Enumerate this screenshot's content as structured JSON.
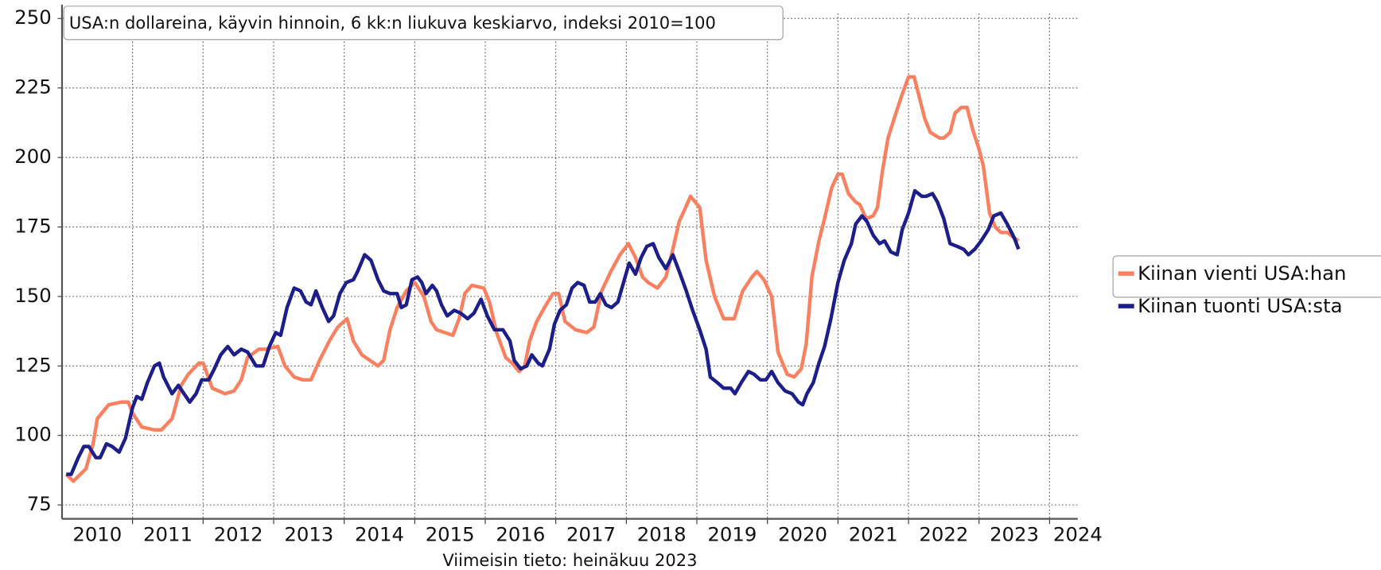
{
  "chart_data": {
    "type": "line",
    "annotation": "USA:n dollareina, käyvin hinnoin, 6 kk:n liukuva keskiarvo, indeksi 2010=100",
    "xlabel": "Viimeisin tieto: heinäkuu 2023",
    "xlim": [
      2010,
      2024.4
    ],
    "ylim": [
      70,
      255
    ],
    "yticks": [
      75,
      100,
      125,
      150,
      175,
      200,
      225,
      250
    ],
    "xticks": [
      {
        "value": 2010.5,
        "label": "2010"
      },
      {
        "value": 2011.5,
        "label": "2011"
      },
      {
        "value": 2012.5,
        "label": "2012"
      },
      {
        "value": 2013.5,
        "label": "2013"
      },
      {
        "value": 2014.5,
        "label": "2014"
      },
      {
        "value": 2015.5,
        "label": "2015"
      },
      {
        "value": 2016.5,
        "label": "2016"
      },
      {
        "value": 2017.5,
        "label": "2017"
      },
      {
        "value": 2018.5,
        "label": "2018"
      },
      {
        "value": 2019.5,
        "label": "2019"
      },
      {
        "value": 2020.5,
        "label": "2020"
      },
      {
        "value": 2021.5,
        "label": "2021"
      },
      {
        "value": 2022.5,
        "label": "2022"
      },
      {
        "value": 2023.5,
        "label": "2023"
      },
      {
        "value": 2024.4,
        "label": "2024"
      }
    ],
    "xgrid": [
      2011,
      2012,
      2013,
      2014,
      2015,
      2016,
      2017,
      2018,
      2019,
      2020,
      2021,
      2022,
      2023,
      2024
    ],
    "grid": true,
    "legend": "right",
    "series": [
      {
        "name": "Kiinan vienti USA:han",
        "color": "#fa8060",
        "x": [
          2010.06,
          2010.16,
          2010.34,
          2010.44,
          2010.5,
          2010.66,
          2010.84,
          2010.94,
          2011.0,
          2011.13,
          2011.31,
          2011.41,
          2011.56,
          2011.69,
          2011.79,
          2011.94,
          2012.0,
          2012.13,
          2012.31,
          2012.44,
          2012.54,
          2012.63,
          2012.79,
          2012.88,
          2013.06,
          2013.16,
          2013.29,
          2013.41,
          2013.53,
          2013.65,
          2013.79,
          2013.91,
          2014.04,
          2014.13,
          2014.25,
          2014.48,
          2014.56,
          2014.65,
          2014.75,
          2014.88,
          2015.0,
          2015.13,
          2015.23,
          2015.31,
          2015.54,
          2015.63,
          2015.71,
          2015.81,
          2015.98,
          2016.06,
          2016.16,
          2016.29,
          2016.38,
          2016.48,
          2016.56,
          2016.63,
          2016.73,
          2016.84,
          2016.96,
          2017.04,
          2017.13,
          2017.28,
          2017.44,
          2017.54,
          2017.65,
          2017.78,
          2017.91,
          2018.03,
          2018.13,
          2018.23,
          2018.31,
          2018.44,
          2018.56,
          2018.65,
          2018.75,
          2018.84,
          2018.91,
          2019.04,
          2019.13,
          2019.25,
          2019.38,
          2019.53,
          2019.65,
          2019.78,
          2019.85,
          2019.95,
          2020.06,
          2020.15,
          2020.28,
          2020.38,
          2020.48,
          2020.55,
          2020.63,
          2020.73,
          2020.81,
          2020.91,
          2021.0,
          2021.06,
          2021.15,
          2021.25,
          2021.31,
          2021.4,
          2021.5,
          2021.56,
          2021.63,
          2021.71,
          2021.81,
          2021.9,
          2022.0,
          2022.08,
          2022.15,
          2022.23,
          2022.31,
          2022.44,
          2022.5,
          2022.59,
          2022.66,
          2022.75,
          2022.83,
          2022.91,
          2023.0,
          2023.06,
          2023.15,
          2023.23,
          2023.31,
          2023.4,
          2023.5,
          2023.56
        ],
        "values": [
          86,
          83.5,
          88,
          97,
          106,
          111,
          112,
          112,
          108,
          103,
          102,
          102,
          106,
          118,
          122,
          126,
          126,
          117,
          115,
          116,
          120,
          128,
          131,
          131,
          132,
          125,
          121,
          120,
          120,
          127,
          134,
          139,
          142,
          134,
          129,
          125,
          127,
          138,
          146,
          152,
          155,
          150,
          141,
          138,
          136,
          142,
          151,
          154,
          153,
          148,
          137,
          128,
          126,
          123,
          125,
          134,
          141,
          146,
          151,
          151,
          141,
          138,
          137,
          139,
          152,
          159,
          165,
          169,
          164,
          157,
          155,
          153,
          157,
          166,
          177,
          182,
          186,
          182,
          163,
          150,
          142,
          142,
          152,
          157,
          159,
          156,
          150,
          130,
          122,
          121,
          124,
          133,
          157,
          170,
          178,
          189,
          194,
          194,
          187,
          184,
          183,
          178,
          179,
          182,
          195,
          207,
          215,
          222,
          229,
          229,
          222,
          214,
          209,
          207,
          207,
          209,
          216,
          218,
          218,
          210,
          203,
          197,
          180,
          175,
          173,
          173,
          171,
          170
        ]
      },
      {
        "name": "Kiinan tuonti USA:sta",
        "color": "#1c1f8a",
        "x": [
          2010.06,
          2010.13,
          2010.23,
          2010.31,
          2010.38,
          2010.48,
          2010.54,
          2010.63,
          2010.71,
          2010.81,
          2010.9,
          2011.0,
          2011.06,
          2011.13,
          2011.21,
          2011.31,
          2011.38,
          2011.44,
          2011.56,
          2011.65,
          2011.73,
          2011.81,
          2011.9,
          2011.98,
          2012.08,
          2012.16,
          2012.25,
          2012.35,
          2012.44,
          2012.54,
          2012.63,
          2012.75,
          2012.85,
          2012.94,
          2013.03,
          2013.1,
          2013.19,
          2013.29,
          2013.38,
          2013.46,
          2013.53,
          2013.6,
          2013.69,
          2013.78,
          2013.85,
          2013.94,
          2014.03,
          2014.13,
          2014.19,
          2014.29,
          2014.38,
          2014.48,
          2014.56,
          2014.65,
          2014.75,
          2014.81,
          2014.88,
          2014.96,
          2015.04,
          2015.1,
          2015.16,
          2015.25,
          2015.31,
          2015.38,
          2015.46,
          2015.56,
          2015.65,
          2015.75,
          2015.84,
          2015.94,
          2016.03,
          2016.13,
          2016.25,
          2016.35,
          2016.41,
          2016.5,
          2016.59,
          2016.66,
          2016.75,
          2016.81,
          2016.91,
          2016.98,
          2017.06,
          2017.15,
          2017.23,
          2017.31,
          2017.4,
          2017.48,
          2017.56,
          2017.63,
          2017.71,
          2017.79,
          2017.88,
          2017.96,
          2018.04,
          2018.13,
          2018.21,
          2018.29,
          2018.38,
          2018.46,
          2018.56,
          2018.66,
          2018.75,
          2018.85,
          2018.94,
          2019.04,
          2019.13,
          2019.19,
          2019.29,
          2019.38,
          2019.48,
          2019.54,
          2019.63,
          2019.73,
          2019.81,
          2019.9,
          2019.98,
          2020.06,
          2020.15,
          2020.25,
          2020.35,
          2020.44,
          2020.5,
          2020.56,
          2020.65,
          2020.73,
          2020.81,
          2020.9,
          2021.0,
          2021.09,
          2021.19,
          2021.25,
          2021.34,
          2021.41,
          2021.5,
          2021.59,
          2021.66,
          2021.75,
          2021.84,
          2021.91,
          2022.0,
          2022.09,
          2022.19,
          2022.25,
          2022.34,
          2022.41,
          2022.5,
          2022.59,
          2022.69,
          2022.78,
          2022.85,
          2022.94,
          2023.03,
          2023.13,
          2023.21,
          2023.31,
          2023.4,
          2023.5,
          2023.56
        ],
        "values": [
          86,
          86,
          92,
          96,
          96,
          92,
          92,
          97,
          96,
          94,
          99,
          110,
          114,
          113,
          119,
          125,
          126,
          121,
          115,
          118,
          115,
          112,
          115,
          120,
          120,
          124,
          129,
          132,
          129,
          131,
          130,
          125,
          125,
          132,
          137,
          136,
          146,
          153,
          152,
          148,
          147,
          152,
          146,
          141,
          143,
          151,
          155,
          156,
          159,
          165,
          163,
          156,
          152,
          151,
          151,
          146,
          147,
          156,
          157,
          155,
          151,
          154,
          152,
          147,
          143,
          145,
          144,
          142,
          144,
          149,
          143,
          138,
          138,
          134,
          127,
          124,
          125,
          129,
          126,
          125,
          131,
          140,
          145,
          147,
          153,
          155,
          154,
          148,
          148,
          151,
          147,
          146,
          148,
          155,
          162,
          158,
          164,
          168,
          169,
          164,
          160,
          165,
          159,
          152,
          145,
          138,
          131,
          121,
          119,
          117,
          117,
          115,
          119,
          123,
          122,
          120,
          120,
          123,
          119,
          116,
          115,
          112,
          111,
          115,
          119,
          126,
          132,
          142,
          155,
          163,
          169,
          176,
          179,
          177,
          172,
          169,
          170,
          166,
          165,
          174,
          180,
          188,
          186,
          186,
          187,
          184,
          178,
          169,
          168,
          167,
          165,
          167,
          170,
          174,
          179,
          180,
          176,
          171,
          167
        ]
      }
    ]
  }
}
